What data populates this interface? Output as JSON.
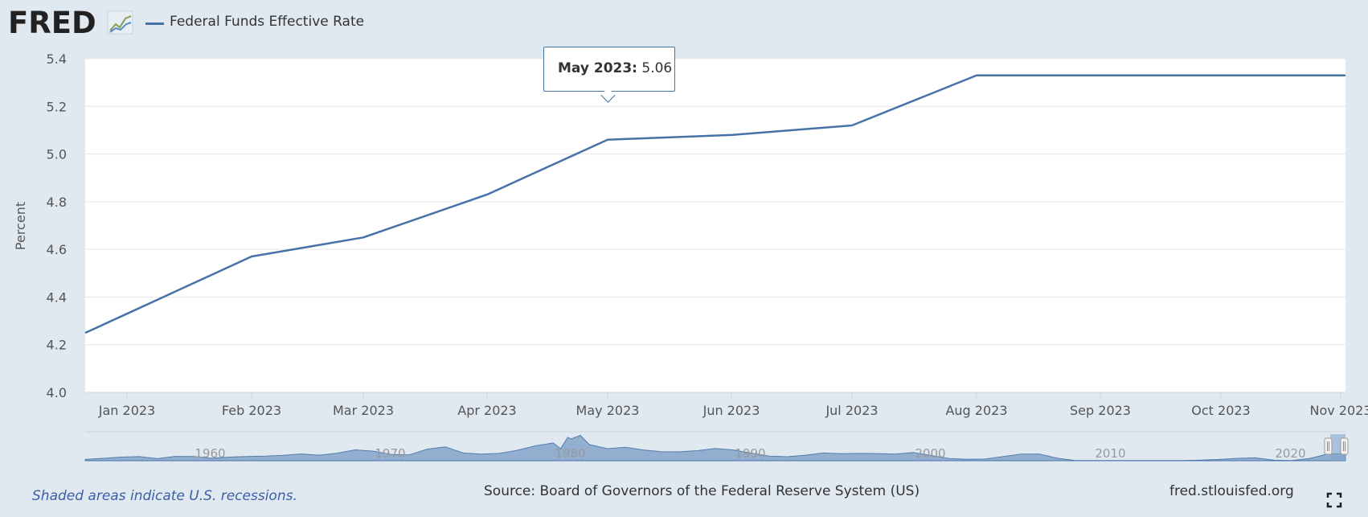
{
  "header": {
    "logo_text": "FRED",
    "legend_label": "Federal Funds Effective Rate",
    "legend_color": "#4572a7"
  },
  "tooltip": {
    "date": "May 2023:",
    "value": "5.06"
  },
  "footer": {
    "note": "Shaded areas indicate U.S. recessions.",
    "source": "Source: Board of Governors of the Federal Reserve System (US)",
    "url": "fred.stlouisfed.org"
  },
  "navigator": {
    "tick_labels": [
      "1960",
      "1970",
      "1980",
      "1990",
      "2000",
      "2010",
      "2020"
    ],
    "tick_years": [
      1960,
      1970,
      1980,
      1990,
      2000,
      2010,
      2020
    ],
    "range": [
      1954,
      2024
    ],
    "profile_x": [
      1954,
      1955,
      1956,
      1957,
      1958,
      1959,
      1960,
      1961,
      1962,
      1963,
      1964,
      1965,
      1966,
      1967,
      1968,
      1969,
      1970,
      1971,
      1972,
      1973,
      1974,
      1975,
      1976,
      1977,
      1978,
      1979,
      1980,
      1980.4,
      1980.8,
      1981,
      1981.5,
      1982,
      1983,
      1984,
      1985,
      1986,
      1987,
      1988,
      1989,
      1990,
      1991,
      1992,
      1993,
      1994,
      1995,
      1996,
      1997,
      1998,
      1999,
      2000,
      2001,
      2002,
      2003,
      2004,
      2005,
      2006,
      2007,
      2008,
      2009,
      2015,
      2016,
      2017,
      2018,
      2019,
      2020,
      2021,
      2022,
      2023,
      2024
    ],
    "profile_y": [
      1.0,
      1.8,
      2.7,
      3.1,
      1.6,
      3.3,
      3.2,
      1.9,
      2.7,
      3.2,
      3.5,
      4.1,
      5.1,
      4.2,
      5.7,
      8.2,
      7.2,
      4.7,
      4.4,
      8.7,
      10.5,
      5.8,
      5.0,
      5.5,
      7.9,
      11.2,
      13.4,
      9.0,
      17.6,
      16.4,
      19.1,
      12.2,
      9.1,
      10.2,
      8.1,
      6.8,
      6.7,
      7.6,
      9.2,
      8.1,
      5.7,
      3.5,
      3.0,
      4.2,
      5.8,
      5.3,
      5.5,
      5.4,
      5.0,
      6.2,
      3.9,
      1.7,
      1.1,
      1.3,
      3.2,
      5.0,
      5.0,
      1.9,
      0.2,
      0.1,
      0.4,
      1.0,
      1.8,
      2.2,
      0.4,
      0.1,
      1.7,
      5.0,
      5.3
    ]
  },
  "chart_data": {
    "type": "line",
    "title": "",
    "xlabel": "",
    "ylabel": "Percent",
    "ylim": [
      4.0,
      5.4
    ],
    "yticks": [
      "4.0",
      "4.2",
      "4.4",
      "4.6",
      "4.8",
      "5.0",
      "5.2",
      "5.4"
    ],
    "xticks": [
      "Jan 2023",
      "Feb 2023",
      "Mar 2023",
      "Apr 2023",
      "May 2023",
      "Jun 2023",
      "Jul 2023",
      "Aug 2023",
      "Sep 2023",
      "Oct 2023",
      "Nov 2023"
    ],
    "grid": true,
    "legend_position": "top-left",
    "series": [
      {
        "name": "Federal Funds Effective Rate",
        "color": "#4572a7",
        "x": [
          "Jan 2023",
          "Feb 2023",
          "Mar 2023",
          "Apr 2023",
          "May 2023",
          "Jun 2023",
          "Jul 2023",
          "Aug 2023",
          "Sep 2023",
          "Oct 2023",
          "Nov 2023"
        ],
        "values": [
          4.33,
          4.57,
          4.65,
          4.83,
          5.06,
          5.08,
          5.12,
          5.33,
          5.33,
          5.33,
          5.33
        ]
      }
    ]
  }
}
